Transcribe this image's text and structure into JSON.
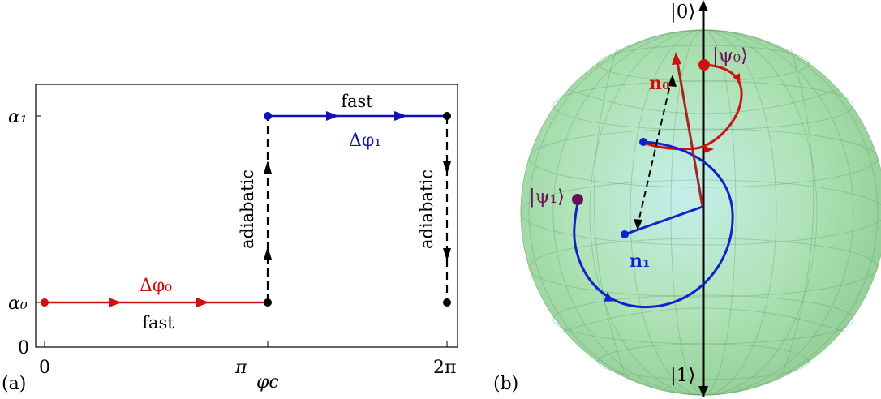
{
  "panel_a": {
    "label": "(a)",
    "y_ticks": {
      "alpha1": "α₁",
      "alpha0": "α₀",
      "zero": "0"
    },
    "x_ticks": {
      "zero": "0",
      "pi": "π",
      "two_pi": "2π"
    },
    "x_axis_label": "φc",
    "labels": {
      "fast_top": "fast",
      "fast_bottom": "fast",
      "adiabatic_left": "adiabatic",
      "adiabatic_right": "adiabatic",
      "delta_phi_0": "Δφ₀",
      "delta_phi_1": "Δφ₁"
    },
    "colors": {
      "red": "#cc1111",
      "blue": "#1111bb",
      "black": "#000000"
    }
  },
  "panel_b": {
    "label": "(b)",
    "labels": {
      "ket0": "|0⟩",
      "ket1": "|1⟩",
      "psi0": "|ψ₀⟩",
      "psi1": "|ψ₁⟩",
      "n0": "n₀",
      "n1": "n₁"
    },
    "colors": {
      "sphere": "#9ed99a",
      "red": "#cc1111",
      "blue": "#1122cc",
      "purple": "#661155"
    }
  }
}
